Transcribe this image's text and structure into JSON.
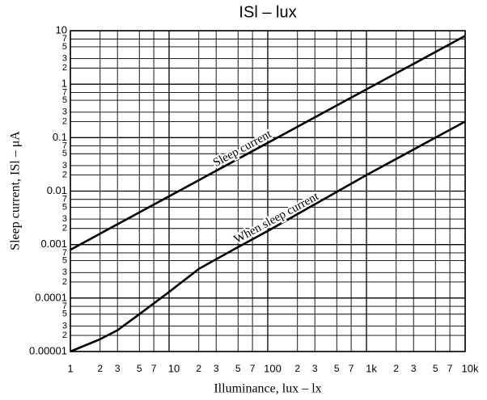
{
  "chart_data": {
    "type": "line",
    "title": "ISl – lux",
    "x_label": "Illuminance, lux – lx",
    "y_label": "Sleep current, ISl – μA",
    "log_x": true,
    "log_y": true,
    "grid": true,
    "xlim": [
      1,
      10000
    ],
    "ylim": [
      1e-05,
      10
    ],
    "xticks": [
      1,
      2,
      3,
      5,
      7,
      10,
      {
        "value": 20,
        "label": "2"
      },
      {
        "value": 30,
        "label": "3"
      },
      {
        "value": 50,
        "label": "5"
      },
      {
        "value": 70,
        "label": "7"
      },
      100,
      {
        "value": 200,
        "label": "2"
      },
      {
        "value": 300,
        "label": "3"
      },
      {
        "value": 500,
        "label": "5"
      },
      {
        "value": 700,
        "label": "7"
      },
      {
        "value": 1000,
        "label": "1k"
      },
      {
        "value": 2000,
        "label": "2"
      },
      {
        "value": 3000,
        "label": "3"
      },
      {
        "value": 5000,
        "label": "5"
      },
      {
        "value": 7000,
        "label": "7"
      },
      {
        "value": 10000,
        "label": "10k"
      }
    ],
    "yticks": [
      1e-05,
      {
        "value": 2e-05,
        "label": "2"
      },
      {
        "value": 3e-05,
        "label": "3"
      },
      {
        "value": 5e-05,
        "label": "5"
      },
      {
        "value": 7e-05,
        "label": "7"
      },
      0.0001,
      {
        "value": 0.0002,
        "label": "2"
      },
      {
        "value": 0.0003,
        "label": "3"
      },
      {
        "value": 0.0005,
        "label": "5"
      },
      {
        "value": 0.0007,
        "label": "7"
      },
      0.001,
      {
        "value": 0.002,
        "label": "2"
      },
      {
        "value": 0.003,
        "label": "3"
      },
      {
        "value": 0.005,
        "label": "5"
      },
      {
        "value": 0.007,
        "label": "7"
      },
      0.01,
      {
        "value": 0.02,
        "label": "2"
      },
      {
        "value": 0.03,
        "label": "3"
      },
      {
        "value": 0.05,
        "label": "5"
      },
      {
        "value": 0.07,
        "label": "7"
      },
      0.1,
      {
        "value": 0.2,
        "label": "2"
      },
      {
        "value": 0.3,
        "label": "3"
      },
      {
        "value": 0.5,
        "label": "5"
      },
      {
        "value": 0.7,
        "label": "7"
      },
      1,
      2,
      3,
      5,
      7,
      10
    ],
    "series": [
      {
        "name": "Sleep current",
        "color": "#000000",
        "x": [
          1,
          10000
        ],
        "values": [
          0.0008,
          8
        ]
      },
      {
        "name": "When sleep current",
        "color": "#000000",
        "x": [
          1,
          2,
          3,
          5,
          10,
          20,
          50,
          100,
          1000,
          10000
        ],
        "values": [
          1e-05,
          1.7e-05,
          2.5e-05,
          5e-05,
          0.00013,
          0.00035,
          0.0009,
          0.0018,
          0.02,
          0.2
        ]
      }
    ]
  }
}
